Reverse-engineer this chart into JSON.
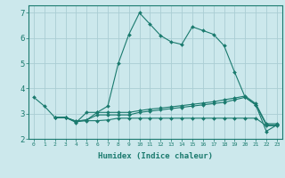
{
  "xlabel": "Humidex (Indice chaleur)",
  "bg_color": "#cce8ec",
  "grid_color": "#aacdd4",
  "line_color": "#1a7a6e",
  "xlim": [
    -0.5,
    23.5
  ],
  "ylim": [
    2.0,
    7.3
  ],
  "x_ticks": [
    0,
    1,
    2,
    3,
    4,
    5,
    6,
    7,
    8,
    9,
    10,
    11,
    12,
    13,
    14,
    15,
    16,
    17,
    18,
    19,
    20,
    21,
    22,
    23
  ],
  "y_ticks": [
    2,
    3,
    4,
    5,
    6,
    7
  ],
  "series": [
    {
      "x": [
        0,
        1,
        2,
        3,
        4,
        5,
        6,
        7,
        8,
        9,
        10,
        11,
        12,
        13,
        14,
        15,
        16,
        17,
        18,
        19,
        20,
        21,
        22,
        23
      ],
      "y": [
        3.65,
        3.3,
        2.85,
        2.85,
        2.65,
        3.05,
        3.05,
        3.3,
        5.0,
        6.15,
        7.0,
        6.55,
        6.1,
        5.85,
        5.75,
        6.45,
        6.3,
        6.15,
        5.7,
        4.65,
        3.65,
        3.35,
        2.3,
        2.55
      ]
    },
    {
      "x": [
        2,
        3,
        4,
        5,
        6,
        7,
        8,
        9,
        10,
        11,
        12,
        13,
        14,
        15,
        16,
        17,
        18,
        19,
        20,
        21,
        22,
        23
      ],
      "y": [
        2.85,
        2.85,
        2.7,
        2.75,
        2.95,
        2.95,
        2.95,
        2.95,
        3.05,
        3.1,
        3.15,
        3.2,
        3.25,
        3.3,
        3.35,
        3.4,
        3.45,
        3.55,
        3.65,
        3.35,
        2.55,
        2.55
      ]
    },
    {
      "x": [
        2,
        3,
        4,
        5,
        6,
        7,
        8,
        9,
        10,
        11,
        12,
        13,
        14,
        15,
        16,
        17,
        18,
        19,
        20,
        21,
        22,
        23
      ],
      "y": [
        2.85,
        2.85,
        2.7,
        2.75,
        3.05,
        3.05,
        3.05,
        3.05,
        3.12,
        3.18,
        3.22,
        3.27,
        3.32,
        3.37,
        3.42,
        3.47,
        3.55,
        3.62,
        3.7,
        3.4,
        2.6,
        2.6
      ]
    },
    {
      "x": [
        2,
        3,
        4,
        5,
        6,
        7,
        8,
        9,
        10,
        11,
        12,
        13,
        14,
        15,
        16,
        17,
        18,
        19,
        20,
        21,
        22,
        23
      ],
      "y": [
        2.85,
        2.85,
        2.68,
        2.72,
        2.72,
        2.75,
        2.82,
        2.82,
        2.82,
        2.82,
        2.82,
        2.82,
        2.82,
        2.82,
        2.82,
        2.82,
        2.82,
        2.82,
        2.82,
        2.82,
        2.52,
        2.52
      ]
    }
  ]
}
